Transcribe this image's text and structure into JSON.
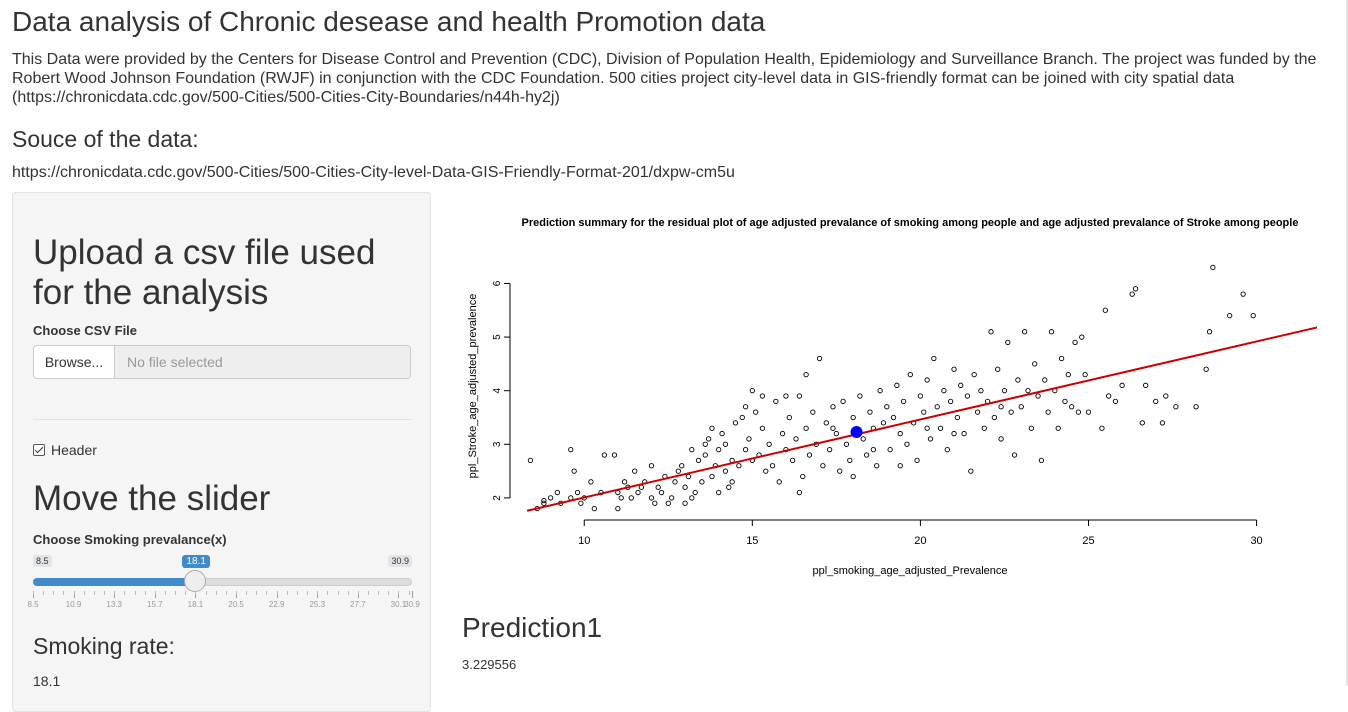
{
  "page": {
    "title": "Data analysis of Chronic desease and health Promotion data",
    "description": "This Data were provided by the Centers for Disease Control and Prevention (CDC), Division of Population Health, Epidemiology and Surveillance Branch. The project was funded by the Robert Wood Johnson Foundation (RWJF) in conjunction with the CDC Foundation. 500 cities project city-level data in GIS-friendly format can be joined with city spatial data (https://chronicdata.cdc.gov/500-Cities/500-Cities-City-Boundaries/n44h-hy2j)",
    "source_heading": "Souce of the data:",
    "source_url": "https://chronicdata.cdc.gov/500-Cities/500-Cities-City-level-Data-GIS-Friendly-Format-201/dxpw-cm5u"
  },
  "sidebar": {
    "upload_heading": "Upload a csv file used for the analysis",
    "file_label": "Choose CSV File",
    "browse_label": "Browse...",
    "file_placeholder": "No file selected",
    "header_checkbox_label": "Header",
    "header_checked": true,
    "slider_heading": "Move the slider",
    "slider_label": "Choose Smoking prevalance(x)",
    "slider_min": 8.5,
    "slider_max": 30.9,
    "slider_value": 18.1,
    "slider_min_label": "8.5",
    "slider_max_label": "30.9",
    "slider_value_label": "18.1",
    "slider_ticks": [
      "8.5",
      "10.9",
      "13.3",
      "15.7",
      "18.1",
      "20.5",
      "22.9",
      "25.3",
      "27.7",
      "30.1",
      "30.9"
    ],
    "rate_heading": "Smoking rate:",
    "rate_value": "18.1"
  },
  "prediction": {
    "heading": "Prediction1",
    "value": "3.229556"
  },
  "chart_data": {
    "type": "scatter",
    "title": "Prediction summary for the residual plot of age adjusted prevalance of smoking among people and age adjusted prevalance of Stroke among people",
    "xlabel": "ppl_smoking_age_adjusted_Prevalence",
    "ylabel": "ppl_Stroke_age_adjusted_prevalence",
    "xlim": [
      8,
      31.5
    ],
    "ylim": [
      1.7,
      6.4
    ],
    "xticks": [
      10,
      15,
      20,
      25,
      30
    ],
    "yticks": [
      2,
      3,
      4,
      5,
      6
    ],
    "grid": false,
    "regression_line": {
      "x": [
        8.3,
        31.8
      ],
      "y": [
        1.76,
        5.18
      ],
      "color": "#cc0000"
    },
    "prediction_point": {
      "x": 18.1,
      "y": 3.229556,
      "color": "#0000ff"
    },
    "point_color": "#000000",
    "points": [
      [
        8.4,
        2.7
      ],
      [
        8.6,
        1.8
      ],
      [
        8.8,
        1.9
      ],
      [
        9.0,
        2.0
      ],
      [
        9.3,
        1.9
      ],
      [
        9.6,
        2.0
      ],
      [
        9.8,
        2.1
      ],
      [
        9.9,
        1.9
      ],
      [
        9.7,
        2.5
      ],
      [
        9.6,
        2.9
      ],
      [
        9.2,
        2.1
      ],
      [
        8.8,
        1.95
      ],
      [
        10.3,
        1.8
      ],
      [
        10.5,
        2.1
      ],
      [
        10.6,
        2.8
      ],
      [
        10.9,
        2.8
      ],
      [
        10.2,
        2.3
      ],
      [
        10.0,
        2.0
      ],
      [
        11.0,
        2.1
      ],
      [
        11.1,
        2.0
      ],
      [
        11.2,
        2.3
      ],
      [
        11.3,
        2.2
      ],
      [
        11.0,
        1.8
      ],
      [
        11.4,
        2.0
      ],
      [
        11.5,
        2.5
      ],
      [
        11.6,
        2.1
      ],
      [
        11.8,
        2.3
      ],
      [
        12.0,
        2.0
      ],
      [
        12.1,
        1.9
      ],
      [
        12.2,
        2.2
      ],
      [
        12.4,
        2.4
      ],
      [
        12.3,
        2.1
      ],
      [
        12.0,
        2.6
      ],
      [
        11.7,
        2.2
      ],
      [
        12.5,
        1.9
      ],
      [
        12.6,
        2.0
      ],
      [
        12.7,
        2.3
      ],
      [
        12.8,
        2.5
      ],
      [
        12.9,
        2.6
      ],
      [
        13.0,
        2.2
      ],
      [
        13.1,
        2.4
      ],
      [
        13.2,
        2.0
      ],
      [
        13.3,
        2.1
      ],
      [
        13.4,
        2.7
      ],
      [
        13.0,
        1.9
      ],
      [
        13.5,
        2.3
      ],
      [
        13.6,
        2.8
      ],
      [
        13.7,
        3.1
      ],
      [
        13.8,
        2.4
      ],
      [
        13.9,
        2.6
      ],
      [
        14.0,
        2.9
      ],
      [
        14.1,
        3.2
      ],
      [
        14.2,
        2.5
      ],
      [
        14.3,
        2.2
      ],
      [
        14.4,
        2.7
      ],
      [
        14.5,
        3.4
      ],
      [
        13.6,
        3.0
      ],
      [
        13.8,
        3.3
      ],
      [
        14.0,
        2.1
      ],
      [
        14.2,
        3.0
      ],
      [
        14.4,
        2.3
      ],
      [
        14.6,
        2.6
      ],
      [
        14.7,
        3.5
      ],
      [
        14.8,
        2.9
      ],
      [
        14.9,
        3.1
      ],
      [
        15.0,
        2.7
      ],
      [
        15.1,
        3.6
      ],
      [
        15.0,
        4.0
      ],
      [
        15.2,
        2.8
      ],
      [
        15.3,
        3.3
      ],
      [
        15.4,
        2.5
      ],
      [
        15.5,
        3.0
      ],
      [
        15.6,
        2.6
      ],
      [
        15.7,
        3.8
      ],
      [
        15.8,
        2.3
      ],
      [
        15.9,
        3.2
      ],
      [
        16.0,
        2.9
      ],
      [
        16.1,
        3.5
      ],
      [
        16.2,
        2.7
      ],
      [
        16.3,
        3.1
      ],
      [
        16.4,
        3.9
      ],
      [
        16.5,
        2.4
      ],
      [
        16.6,
        3.3
      ],
      [
        16.7,
        2.8
      ],
      [
        16.8,
        3.6
      ],
      [
        16.9,
        3.0
      ],
      [
        17.0,
        4.6
      ],
      [
        17.1,
        2.6
      ],
      [
        17.2,
        3.4
      ],
      [
        16.4,
        2.1
      ],
      [
        16.0,
        3.9
      ],
      [
        17.3,
        2.9
      ],
      [
        17.4,
        3.7
      ],
      [
        17.5,
        3.2
      ],
      [
        17.6,
        2.5
      ],
      [
        17.7,
        3.8
      ],
      [
        17.8,
        3.0
      ],
      [
        17.9,
        2.7
      ],
      [
        18.0,
        3.5
      ],
      [
        18.2,
        3.9
      ],
      [
        18.3,
        3.1
      ],
      [
        18.4,
        2.8
      ],
      [
        18.5,
        3.6
      ],
      [
        18.6,
        3.3
      ],
      [
        18.7,
        2.6
      ],
      [
        18.8,
        4.0
      ],
      [
        18.9,
        3.4
      ],
      [
        19.0,
        3.7
      ],
      [
        19.1,
        2.9
      ],
      [
        19.2,
        3.5
      ],
      [
        19.3,
        4.1
      ],
      [
        19.4,
        3.2
      ],
      [
        19.5,
        3.8
      ],
      [
        19.6,
        3.0
      ],
      [
        19.7,
        4.3
      ],
      [
        19.8,
        3.4
      ],
      [
        19.9,
        2.7
      ],
      [
        20.0,
        3.9
      ],
      [
        20.1,
        3.6
      ],
      [
        20.2,
        4.2
      ],
      [
        20.3,
        3.1
      ],
      [
        20.4,
        4.6
      ],
      [
        20.5,
        3.7
      ],
      [
        20.6,
        3.3
      ],
      [
        20.7,
        4.0
      ],
      [
        20.8,
        2.9
      ],
      [
        20.9,
        3.8
      ],
      [
        21.0,
        4.4
      ],
      [
        21.1,
        3.5
      ],
      [
        21.2,
        4.1
      ],
      [
        21.3,
        3.2
      ],
      [
        21.4,
        3.9
      ],
      [
        21.5,
        2.5
      ],
      [
        21.6,
        4.3
      ],
      [
        21.7,
        3.6
      ],
      [
        21.8,
        4.0
      ],
      [
        21.9,
        3.3
      ],
      [
        22.0,
        3.8
      ],
      [
        22.1,
        5.1
      ],
      [
        22.2,
        3.5
      ],
      [
        22.3,
        4.4
      ],
      [
        22.4,
        3.1
      ],
      [
        22.5,
        4.0
      ],
      [
        22.6,
        4.9
      ],
      [
        22.7,
        3.6
      ],
      [
        22.8,
        2.8
      ],
      [
        22.9,
        4.2
      ],
      [
        23.0,
        3.7
      ],
      [
        23.1,
        5.1
      ],
      [
        23.2,
        4.0
      ],
      [
        23.3,
        3.3
      ],
      [
        23.4,
        4.5
      ],
      [
        23.5,
        3.9
      ],
      [
        23.6,
        2.7
      ],
      [
        23.7,
        4.2
      ],
      [
        23.8,
        3.6
      ],
      [
        23.9,
        5.1
      ],
      [
        24.0,
        4.0
      ],
      [
        24.1,
        3.3
      ],
      [
        24.2,
        4.6
      ],
      [
        24.3,
        3.8
      ],
      [
        24.4,
        4.3
      ],
      [
        24.5,
        3.7
      ],
      [
        24.6,
        4.9
      ],
      [
        24.7,
        3.6
      ],
      [
        24.8,
        5.0
      ],
      [
        24.9,
        4.3
      ],
      [
        25.0,
        3.6
      ],
      [
        25.4,
        3.3
      ],
      [
        25.5,
        5.5
      ],
      [
        25.6,
        3.9
      ],
      [
        25.8,
        3.8
      ],
      [
        26.0,
        4.1
      ],
      [
        26.3,
        5.8
      ],
      [
        26.4,
        5.9
      ],
      [
        26.6,
        3.4
      ],
      [
        26.7,
        4.1
      ],
      [
        27.2,
        3.4
      ],
      [
        27.3,
        3.9
      ],
      [
        27.6,
        3.7
      ],
      [
        28.5,
        4.4
      ],
      [
        28.6,
        5.1
      ],
      [
        28.7,
        6.3
      ],
      [
        29.2,
        5.4
      ],
      [
        29.6,
        5.8
      ],
      [
        29.9,
        5.4
      ],
      [
        28.2,
        3.7
      ],
      [
        27.0,
        3.8
      ],
      [
        13.2,
        2.9
      ],
      [
        14.8,
        3.7
      ],
      [
        16.6,
        4.3
      ],
      [
        17.4,
        3.3
      ],
      [
        18.0,
        2.4
      ],
      [
        18.6,
        2.9
      ],
      [
        19.4,
        2.6
      ],
      [
        20.2,
        3.3
      ],
      [
        21.0,
        3.2
      ],
      [
        22.4,
        3.7
      ],
      [
        15.3,
        3.9
      ]
    ]
  }
}
